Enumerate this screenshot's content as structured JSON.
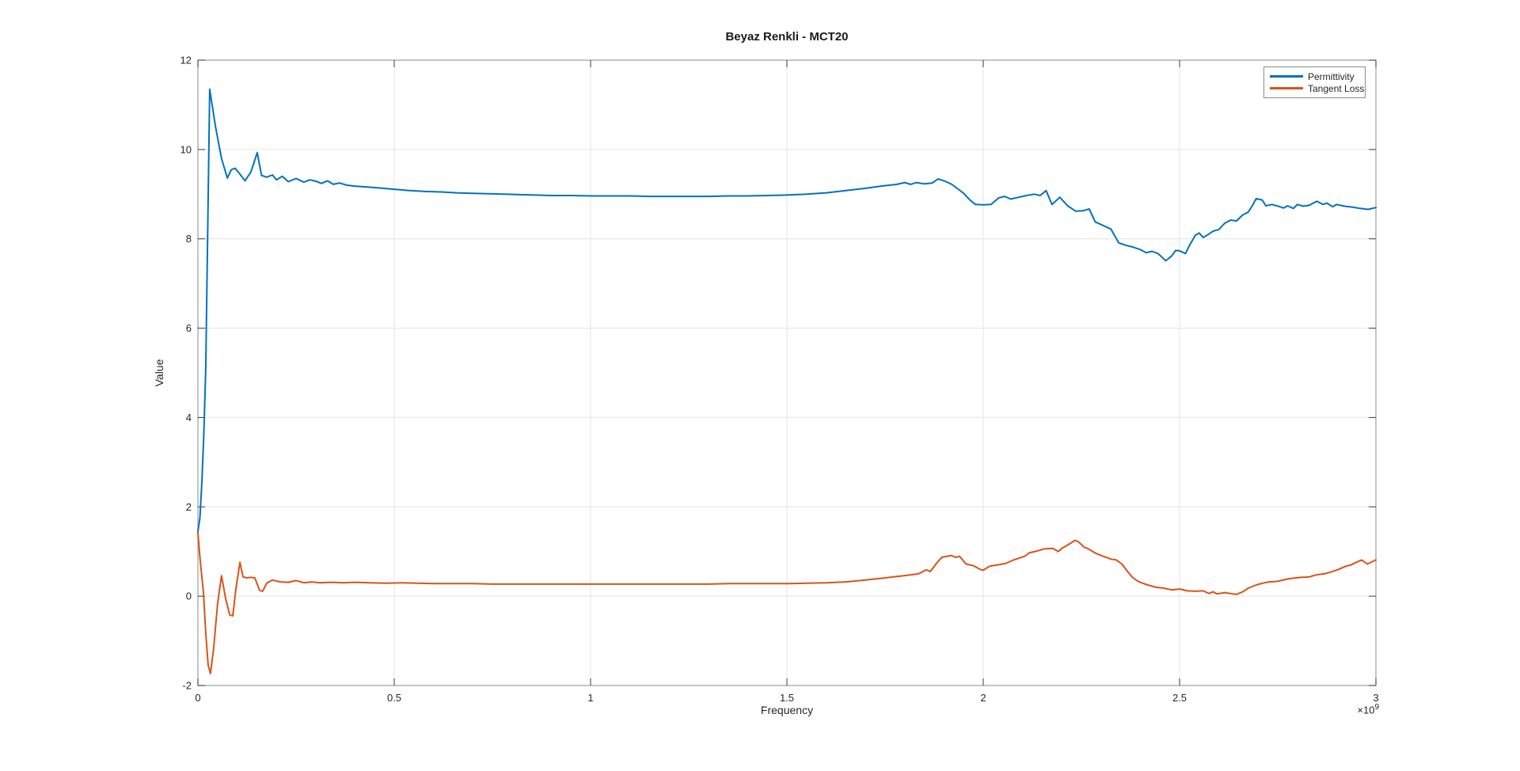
{
  "figure": {
    "background": "#ffffff"
  },
  "chart_data": {
    "type": "line",
    "title": "Beyaz Renkli - MCT20",
    "xlabel": "Frequency",
    "ylabel": "Value",
    "x_multiplier_base": "×10",
    "x_multiplier_exponent": "9",
    "x_unit_note": "x values below are in units of 10^9",
    "xlim": [
      0,
      3
    ],
    "ylim": [
      -2,
      12
    ],
    "x_ticks": [
      0,
      0.5,
      1,
      1.5,
      2,
      2.5,
      3
    ],
    "x_tick_labels": [
      "0",
      "0.5",
      "1",
      "1.5",
      "2",
      "2.5",
      "3"
    ],
    "y_ticks": [
      -2,
      0,
      2,
      4,
      6,
      8,
      10,
      12
    ],
    "y_tick_labels": [
      "-2",
      "0",
      "2",
      "4",
      "6",
      "8",
      "10",
      "12"
    ],
    "grid": true,
    "legend_position": "northeast",
    "colors": {
      "axis": "#9e9e9e",
      "grid": "#e4e4e4",
      "tick": "#3a3a3a",
      "label": "#262626"
    },
    "series": [
      {
        "name": "Permittivity",
        "color": "#0072BD",
        "x": [
          0,
          0.005,
          0.01,
          0.015,
          0.02,
          0.03,
          0.045,
          0.06,
          0.075,
          0.085,
          0.095,
          0.105,
          0.12,
          0.135,
          0.151,
          0.162,
          0.175,
          0.19,
          0.2,
          0.215,
          0.23,
          0.25,
          0.27,
          0.285,
          0.3,
          0.315,
          0.33,
          0.345,
          0.36,
          0.38,
          0.4,
          0.43,
          0.46,
          0.5,
          0.54,
          0.58,
          0.62,
          0.66,
          0.7,
          0.74,
          0.78,
          0.82,
          0.86,
          0.9,
          0.95,
          1.0,
          1.05,
          1.1,
          1.15,
          1.2,
          1.24,
          1.3,
          1.35,
          1.4,
          1.45,
          1.5,
          1.55,
          1.6,
          1.65,
          1.7,
          1.74,
          1.78,
          1.8,
          1.815,
          1.83,
          1.85,
          1.87,
          1.885,
          1.9,
          1.92,
          1.935,
          1.95,
          1.965,
          1.98,
          2.0,
          2.02,
          2.04,
          2.055,
          2.07,
          2.09,
          2.11,
          2.13,
          2.145,
          2.16,
          2.175,
          2.195,
          2.215,
          2.235,
          2.255,
          2.27,
          2.285,
          2.305,
          2.325,
          2.345,
          2.365,
          2.38,
          2.4,
          2.415,
          2.43,
          2.445,
          2.465,
          2.48,
          2.49,
          2.5,
          2.515,
          2.525,
          2.54,
          2.55,
          2.56,
          2.57,
          2.585,
          2.6,
          2.615,
          2.63,
          2.645,
          2.66,
          2.675,
          2.685,
          2.695,
          2.71,
          2.72,
          2.735,
          2.755,
          2.765,
          2.775,
          2.79,
          2.8,
          2.815,
          2.83,
          2.84,
          2.85,
          2.865,
          2.875,
          2.89,
          2.9,
          2.92,
          2.94,
          2.96,
          2.98,
          3.0
        ],
        "y": [
          1.45,
          1.75,
          2.55,
          3.6,
          5.1,
          11.35,
          10.5,
          9.8,
          9.36,
          9.55,
          9.58,
          9.47,
          9.3,
          9.5,
          9.93,
          9.42,
          9.38,
          9.43,
          9.32,
          9.4,
          9.28,
          9.35,
          9.27,
          9.32,
          9.29,
          9.24,
          9.3,
          9.22,
          9.25,
          9.2,
          9.18,
          9.16,
          9.14,
          9.11,
          9.08,
          9.06,
          9.05,
          9.03,
          9.02,
          9.01,
          9.0,
          8.99,
          8.98,
          8.97,
          8.97,
          8.96,
          8.96,
          8.96,
          8.95,
          8.95,
          8.95,
          8.95,
          8.96,
          8.96,
          8.97,
          8.98,
          9.0,
          9.03,
          9.08,
          9.13,
          9.18,
          9.22,
          9.26,
          9.22,
          9.26,
          9.23,
          9.25,
          9.34,
          9.3,
          9.22,
          9.12,
          9.02,
          8.88,
          8.77,
          8.76,
          8.77,
          8.92,
          8.95,
          8.89,
          8.93,
          8.97,
          9.0,
          8.97,
          9.08,
          8.77,
          8.93,
          8.74,
          8.62,
          8.63,
          8.67,
          8.38,
          8.3,
          8.22,
          7.91,
          7.85,
          7.82,
          7.76,
          7.69,
          7.72,
          7.67,
          7.51,
          7.62,
          7.74,
          7.73,
          7.67,
          7.85,
          8.08,
          8.13,
          8.03,
          8.08,
          8.17,
          8.21,
          8.35,
          8.42,
          8.4,
          8.53,
          8.6,
          8.74,
          8.9,
          8.87,
          8.74,
          8.77,
          8.72,
          8.69,
          8.74,
          8.68,
          8.77,
          8.73,
          8.75,
          8.8,
          8.84,
          8.77,
          8.8,
          8.72,
          8.77,
          8.73,
          8.71,
          8.68,
          8.66,
          8.7
        ]
      },
      {
        "name": "Tangent Loss",
        "color": "#D95319",
        "x": [
          0,
          0.006,
          0.014,
          0.02,
          0.026,
          0.032,
          0.04,
          0.05,
          0.06,
          0.071,
          0.081,
          0.089,
          0.097,
          0.107,
          0.115,
          0.125,
          0.135,
          0.145,
          0.157,
          0.165,
          0.175,
          0.19,
          0.21,
          0.23,
          0.25,
          0.27,
          0.29,
          0.31,
          0.34,
          0.37,
          0.4,
          0.44,
          0.48,
          0.52,
          0.56,
          0.6,
          0.65,
          0.7,
          0.75,
          0.8,
          0.85,
          0.9,
          0.95,
          1.0,
          1.05,
          1.1,
          1.15,
          1.2,
          1.25,
          1.3,
          1.35,
          1.4,
          1.45,
          1.5,
          1.55,
          1.6,
          1.65,
          1.7,
          1.75,
          1.79,
          1.835,
          1.855,
          1.865,
          1.885,
          1.895,
          1.911,
          1.919,
          1.929,
          1.94,
          1.956,
          1.966,
          1.976,
          1.992,
          2.0,
          2.016,
          2.036,
          2.056,
          2.077,
          2.107,
          2.117,
          2.137,
          2.157,
          2.177,
          2.191,
          2.202,
          2.212,
          2.234,
          2.242,
          2.258,
          2.268,
          2.284,
          2.304,
          2.325,
          2.339,
          2.353,
          2.365,
          2.379,
          2.393,
          2.403,
          2.419,
          2.44,
          2.46,
          2.48,
          2.5,
          2.52,
          2.54,
          2.56,
          2.575,
          2.585,
          2.595,
          2.615,
          2.635,
          2.645,
          2.661,
          2.675,
          2.695,
          2.716,
          2.728,
          2.748,
          2.778,
          2.808,
          2.829,
          2.849,
          2.869,
          2.889,
          2.905,
          2.923,
          2.937,
          2.95,
          2.964,
          2.978,
          3.0
        ],
        "y": [
          1.42,
          0.77,
          0.11,
          -0.83,
          -1.54,
          -1.73,
          -1.18,
          -0.18,
          0.46,
          -0.07,
          -0.42,
          -0.44,
          0.18,
          0.76,
          0.43,
          0.41,
          0.42,
          0.41,
          0.13,
          0.11,
          0.29,
          0.36,
          0.32,
          0.31,
          0.35,
          0.3,
          0.32,
          0.3,
          0.31,
          0.3,
          0.31,
          0.3,
          0.29,
          0.3,
          0.29,
          0.28,
          0.28,
          0.28,
          0.27,
          0.27,
          0.27,
          0.27,
          0.27,
          0.27,
          0.27,
          0.27,
          0.27,
          0.27,
          0.27,
          0.27,
          0.28,
          0.28,
          0.28,
          0.28,
          0.29,
          0.3,
          0.32,
          0.36,
          0.41,
          0.45,
          0.5,
          0.59,
          0.55,
          0.78,
          0.87,
          0.9,
          0.91,
          0.87,
          0.89,
          0.72,
          0.7,
          0.68,
          0.6,
          0.58,
          0.67,
          0.7,
          0.73,
          0.81,
          0.9,
          0.97,
          1.01,
          1.06,
          1.07,
          1.0,
          1.08,
          1.13,
          1.25,
          1.22,
          1.09,
          1.06,
          0.97,
          0.9,
          0.83,
          0.81,
          0.72,
          0.58,
          0.43,
          0.34,
          0.3,
          0.25,
          0.2,
          0.18,
          0.14,
          0.16,
          0.12,
          0.11,
          0.12,
          0.06,
          0.1,
          0.05,
          0.08,
          0.05,
          0.04,
          0.1,
          0.18,
          0.25,
          0.3,
          0.32,
          0.33,
          0.39,
          0.42,
          0.43,
          0.48,
          0.5,
          0.55,
          0.6,
          0.67,
          0.7,
          0.76,
          0.81,
          0.72,
          0.81
        ]
      }
    ]
  }
}
